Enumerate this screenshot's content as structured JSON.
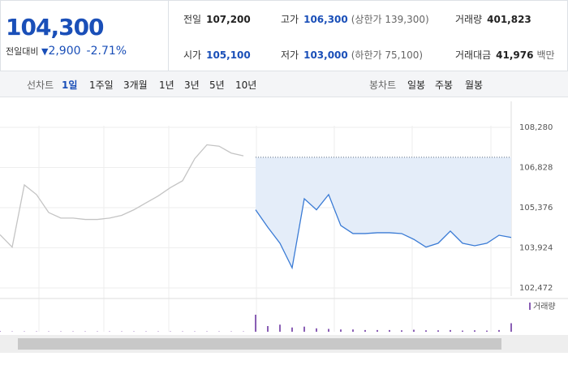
{
  "header": {
    "price": "104,300",
    "change_label": "전일대비",
    "change": "2,900",
    "change_pct": "-2.71%"
  },
  "stats": [
    {
      "label": "전일",
      "value": "107,200"
    },
    {
      "label": "고가",
      "value": "106,300",
      "note": "(상한가 139,300)"
    },
    {
      "label": "거래량",
      "value": "401,823"
    },
    {
      "label": "시가",
      "value": "105,100"
    },
    {
      "label": "저가",
      "value": "103,000",
      "note": "(하한가 75,100)"
    },
    {
      "label": "거래대금",
      "value": "41,976",
      "note": "백만"
    }
  ],
  "tabs": {
    "line_label": "선차트",
    "line_items": [
      "1일",
      "1주일",
      "3개월",
      "1년",
      "3년",
      "5년",
      "10년"
    ],
    "candle_label": "봉차트",
    "candle_items": [
      "일봉",
      "주봉",
      "월봉"
    ]
  },
  "chart_data": {
    "type": "line",
    "categories": [
      null,
      null,
      null,
      null,
      null,
      null,
      null,
      null,
      null,
      null,
      null,
      null,
      null,
      null,
      null,
      null,
      null,
      null,
      null,
      null,
      null,
      null,
      null,
      null,
      null,
      null,
      null,
      null,
      null,
      null,
      null,
      null,
      null,
      null,
      null,
      null,
      null,
      null,
      null,
      null,
      null,
      null,
      null
    ],
    "ylim": [
      102180,
      109220
    ],
    "yticks": [
      {
        "value": 102472,
        "label": "102,472"
      },
      {
        "value": 103924,
        "label": "103,924"
      },
      {
        "value": 105376,
        "label": "105,376"
      },
      {
        "value": 106828,
        "label": "106,828"
      },
      {
        "value": 108280,
        "label": "108,280"
      }
    ],
    "baseline": 107200,
    "grid": true,
    "series": [
      {
        "color": "#c4c4c4",
        "values": [
          104400,
          103950,
          106200,
          105850,
          105200,
          105000,
          105000,
          104950,
          104950,
          105000,
          105100,
          105300,
          105550,
          105800,
          106100,
          106350,
          107150,
          107650,
          107600,
          107350,
          107250,
          null,
          null,
          null,
          null,
          null,
          null,
          null,
          null,
          null,
          null,
          null,
          null,
          null,
          null,
          null,
          null,
          null,
          null,
          null,
          null,
          null,
          null
        ]
      },
      {
        "color": "#3a7bd5",
        "fill": "#e4edf9",
        "values": [
          null,
          null,
          null,
          null,
          null,
          null,
          null,
          null,
          null,
          null,
          null,
          null,
          null,
          null,
          null,
          null,
          null,
          null,
          null,
          null,
          null,
          105300,
          104670,
          104090,
          103200,
          105700,
          105300,
          105850,
          104730,
          104440,
          104440,
          104470,
          104470,
          104440,
          104230,
          103950,
          104090,
          104530,
          104090,
          104000,
          104090,
          104380,
          104300
        ]
      },
      {
        "name": "거래량",
        "color": "#8a5fb5",
        "axis": "y2",
        "values": [
          2,
          1,
          1,
          1,
          1,
          1,
          1,
          1,
          1,
          1,
          1,
          1,
          1,
          1,
          1,
          1,
          1,
          1,
          1,
          1,
          1,
          60,
          20,
          25,
          15,
          18,
          12,
          10,
          8,
          8,
          6,
          6,
          6,
          5,
          7,
          5,
          5,
          6,
          4,
          5,
          4,
          6,
          30
        ]
      }
    ],
    "y2lim": [
      0,
      100
    ]
  }
}
